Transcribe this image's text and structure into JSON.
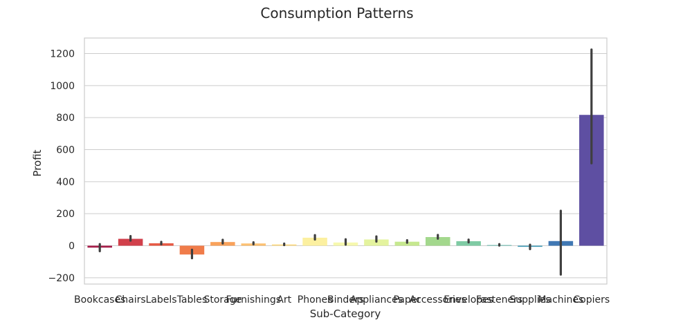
{
  "chart_data": {
    "type": "bar",
    "title": "Consumption Patterns",
    "xlabel": "Sub-Category",
    "ylabel": "Profit",
    "ylim": [
      -240,
      1290
    ],
    "yticks": [
      -200,
      0,
      200,
      400,
      600,
      800,
      1000,
      1200
    ],
    "ytick_labels": [
      "−200",
      "0",
      "200",
      "400",
      "600",
      "800",
      "1000",
      "1200"
    ],
    "grid": true,
    "categories": [
      "Bookcases",
      "Chairs",
      "Labels",
      "Tables",
      "Storage",
      "Furnishings",
      "Art",
      "Phones",
      "Binders",
      "Appliances",
      "Paper",
      "Accessories",
      "Envelopes",
      "Fasteners",
      "Supplies",
      "Machines",
      "Copiers"
    ],
    "values": [
      -12,
      43,
      15,
      -55,
      23,
      14,
      8,
      50,
      20,
      39,
      25,
      54,
      28,
      4,
      -7,
      29,
      817
    ],
    "err_low": [
      -34,
      32,
      9,
      -78,
      14,
      9,
      4,
      39,
      7,
      26,
      19,
      44,
      21,
      1,
      -21,
      -180,
      515
    ],
    "err_high": [
      10,
      60,
      24,
      -25,
      37,
      21,
      13,
      66,
      40,
      58,
      34,
      67,
      38,
      10,
      6,
      218,
      1225
    ],
    "colors": [
      "#a71e4a",
      "#d1404b",
      "#e75a45",
      "#f07c4a",
      "#f9a25b",
      "#fdc171",
      "#fedb86",
      "#fcf0a0",
      "#f6f8ae",
      "#e4f39e",
      "#c6e88f",
      "#a3d88d",
      "#7fcba4",
      "#5cb7aa",
      "#3d99b4",
      "#4078b4",
      "#5e4fa2"
    ]
  }
}
